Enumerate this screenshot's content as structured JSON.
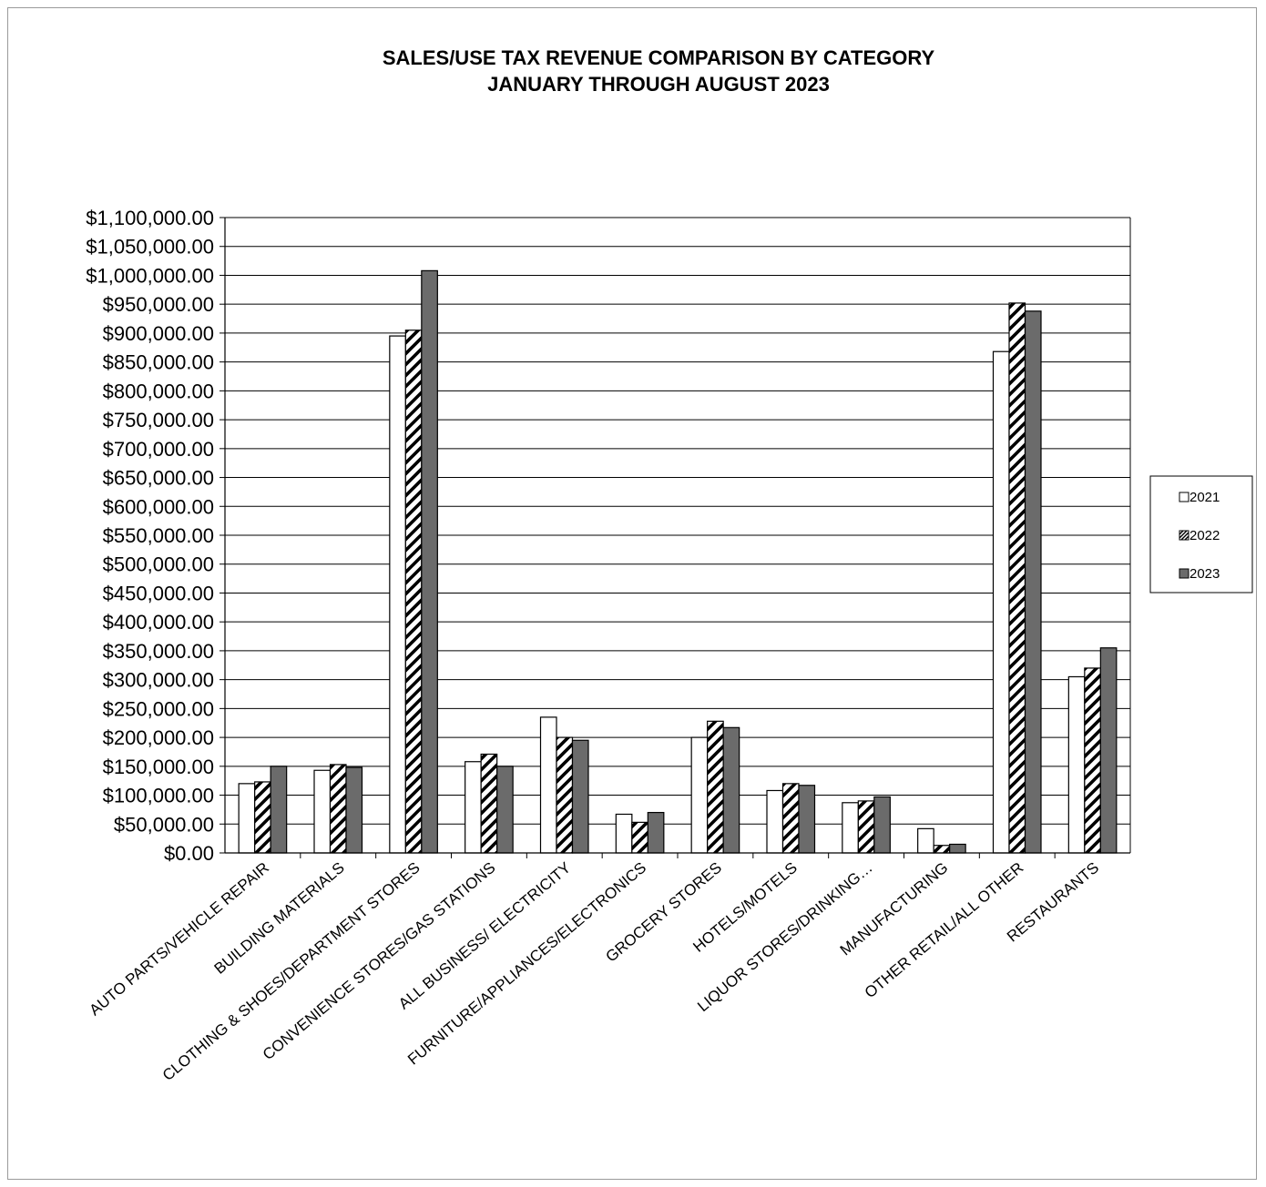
{
  "chart_data": {
    "type": "bar",
    "title": "SALES/USE TAX REVENUE COMPARISON BY CATEGORY",
    "subtitle": "JANUARY THROUGH AUGUST 2023",
    "xlabel": "",
    "ylabel": "",
    "ylim": [
      0,
      1100000
    ],
    "ytick_step": 50000,
    "y_tick_labels": [
      "$0.00",
      "$50,000.00",
      "$100,000.00",
      "$150,000.00",
      "$200,000.00",
      "$250,000.00",
      "$300,000.00",
      "$350,000.00",
      "$400,000.00",
      "$450,000.00",
      "$500,000.00",
      "$550,000.00",
      "$600,000.00",
      "$650,000.00",
      "$700,000.00",
      "$750,000.00",
      "$800,000.00",
      "$850,000.00",
      "$900,000.00",
      "$950,000.00",
      "$1,000,000.00",
      "$1,050,000.00",
      "$1,100,000.00"
    ],
    "grid": true,
    "legend_position": "right",
    "categories": [
      "AUTO PARTS/VEHICLE REPAIR",
      "BUILDING MATERIALS",
      "CLOTHING & SHOES/DEPARTMENT STORES",
      "CONVENIENCE STORES/GAS STATIONS",
      "ALL BUSINESS/ ELECTRICITY",
      "FURNITURE/APPLIANCES/ELECTRONICS",
      "GROCERY STORES",
      "HOTELS/MOTELS",
      "LIQUOR STORES/DRINKING…",
      "MANUFACTURING",
      "OTHER RETAIL/ALL OTHER",
      "RESTAURANTS"
    ],
    "series": [
      {
        "name": "2021",
        "fill": "white",
        "color": "#ffffff",
        "values": [
          120000,
          143000,
          895000,
          158000,
          235000,
          67000,
          200000,
          108000,
          87000,
          42000,
          868000,
          305000
        ]
      },
      {
        "name": "2022",
        "fill": "diagonal-hatch",
        "color": "#000000",
        "values": [
          123000,
          153000,
          905000,
          171000,
          200000,
          53000,
          228000,
          120000,
          90000,
          13000,
          952000,
          320000
        ]
      },
      {
        "name": "2023",
        "fill": "gray",
        "color": "#6b6b6b",
        "values": [
          150000,
          148000,
          1008000,
          150000,
          195000,
          70000,
          217000,
          117000,
          97000,
          15000,
          938000,
          355000
        ]
      }
    ]
  }
}
